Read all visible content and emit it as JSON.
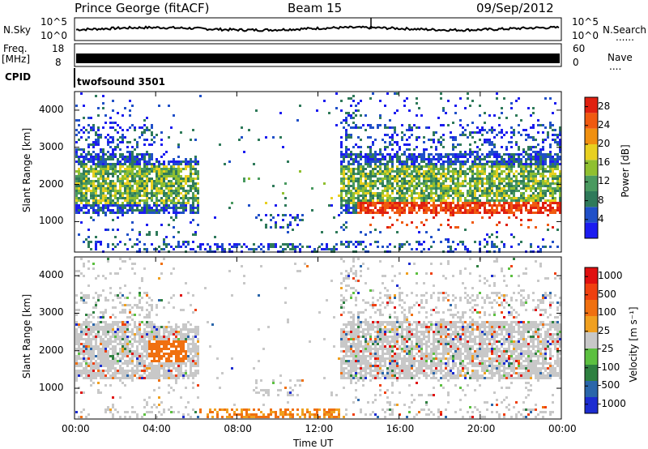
{
  "header": {
    "station": "Prince George (fitACF)",
    "beam": "Beam 15",
    "date": "09/Sep/2012"
  },
  "left_labels": {
    "nsky": "N.Sky",
    "nsky_hi": "10^5",
    "nsky_lo": "10^0",
    "freq": "Freq.",
    "freq_unit": "[MHz]",
    "freq_hi": "18",
    "freq_lo": "8",
    "cpid": "CPID"
  },
  "right_labels": {
    "nsearch_hi": "10^5",
    "nsearch_lo": "10^0",
    "nsearch": "N.Search",
    "nave_hi": "60",
    "nave_lo": "0",
    "nave": "Nave"
  },
  "cpid_text": "twofsound 3501",
  "colors": {
    "power": [
      "#1c1cf0",
      "#2050c8",
      "#2f7a5a",
      "#4a9a60",
      "#90c030",
      "#e8d020",
      "#f09010",
      "#f05a10",
      "#e02010"
    ],
    "velocity": [
      "#1c2cd0",
      "#2a66aa",
      "#2e8040",
      "#5cc040",
      "#c8c8c8",
      "#f0a020",
      "#f07010",
      "#f04010",
      "#e01010"
    ]
  },
  "chart_data": [
    {
      "type": "heatmap",
      "title": "",
      "ylabel": "Slant Range [km]",
      "xlabel": "",
      "ylim": [
        180,
        4500
      ],
      "yticks": [
        "1000",
        "2000",
        "3000",
        "4000"
      ],
      "xlim": [
        "00:00",
        "24:00"
      ],
      "colorbar": {
        "label": "Power [dB]",
        "ticks": [
          "4",
          "8",
          "12",
          "16",
          "20",
          "24",
          "28"
        ],
        "range": [
          0,
          30
        ]
      }
    },
    {
      "type": "heatmap",
      "title": "",
      "ylabel": "Slant Range [km]",
      "xlabel": "Time UT",
      "ylim": [
        180,
        4500
      ],
      "yticks": [
        "1000",
        "2000",
        "3000",
        "4000"
      ],
      "xticks": [
        "00:00",
        "04:00",
        "08:00",
        "12:00",
        "16:00",
        "20:00",
        "00:00"
      ],
      "colorbar": {
        "label": "Velocity [m s⁻¹]",
        "ticks": [
          "1000",
          "500",
          "100",
          "25",
          "-25",
          "-100",
          "-500",
          "-1000"
        ]
      }
    }
  ]
}
